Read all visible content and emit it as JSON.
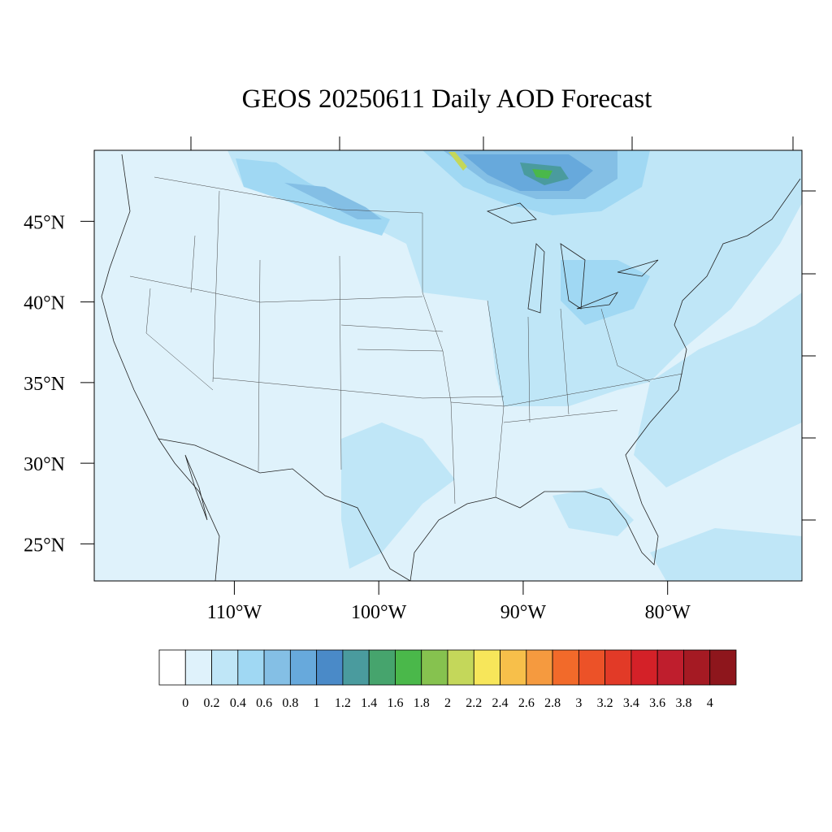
{
  "chart_data": {
    "type": "contour-map",
    "title": "GEOS 20250611 Daily AOD Forecast",
    "xlim": [
      -119.7,
      -70.7
    ],
    "ylim": [
      22.7,
      49.4
    ],
    "xticks": [
      {
        "value": -110,
        "label": "110°W"
      },
      {
        "value": -100,
        "label": "100°W"
      },
      {
        "value": -90,
        "label": "90°W"
      },
      {
        "value": -80,
        "label": "80°W"
      }
    ],
    "yticks": [
      {
        "value": 45,
        "label": "45°N"
      },
      {
        "value": 40,
        "label": "40°N"
      },
      {
        "value": 35,
        "label": "35°N"
      },
      {
        "value": 30,
        "label": "30°N"
      },
      {
        "value": 25,
        "label": "25°N"
      }
    ],
    "levels": [
      0,
      0.2,
      0.4,
      0.6,
      0.8,
      1,
      1.2,
      1.4,
      1.6,
      1.8,
      2,
      2.2,
      2.4,
      2.6,
      2.8,
      3,
      3.2,
      3.4,
      3.6,
      3.8,
      4
    ],
    "colors": [
      "#ffffff",
      "#dff2fb",
      "#bfe6f7",
      "#a0d8f3",
      "#84bfe5",
      "#67a9dc",
      "#4a8ac8",
      "#4a9b9e",
      "#46a46d",
      "#4ab84a",
      "#86c24f",
      "#c4d75a",
      "#f7e65a",
      "#f7bf4a",
      "#f59a3f",
      "#f26a2a",
      "#ec5228",
      "#e23a27",
      "#d42128",
      "#bf1e2d",
      "#a51a23",
      "#8e161c"
    ]
  }
}
